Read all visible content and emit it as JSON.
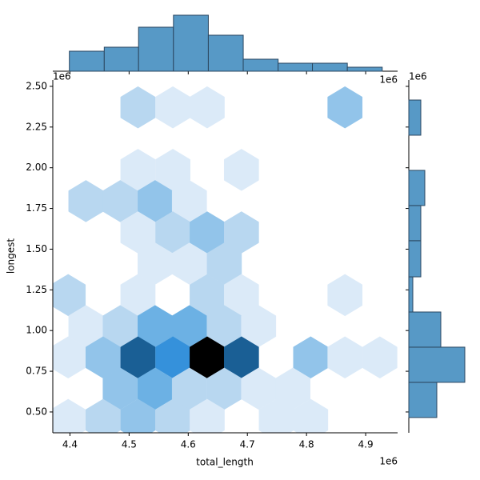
{
  "chart_data": {
    "type": "hexbin",
    "xlabel": "total_length",
    "ylabel": "longest",
    "x_offset": "1e6",
    "y_offset": "1e6",
    "top_offset": "1e6",
    "right_offset": "1e6",
    "xlim": [
      4.371,
      4.954
    ],
    "ylim": [
      0.372,
      2.539
    ],
    "xticks": [
      4.4,
      4.5,
      4.6,
      4.7,
      4.8,
      4.9
    ],
    "yticks": [
      {
        "value": 0.5,
        "label": "0.50"
      },
      0.75,
      {
        "value": 1.0,
        "label": "1.00"
      },
      1.25,
      {
        "value": 1.5,
        "label": "1.50"
      },
      1.75,
      {
        "value": 2.0,
        "label": "2.00"
      },
      2.25,
      {
        "value": 2.5,
        "label": "2.50"
      }
    ],
    "cmap": [
      "#ffffff",
      "#dbeaf8",
      "#b8d7f0",
      "#92c4ea",
      "#6cb1e4",
      "#50a1df",
      "#3591db",
      "#1a5f95",
      "#0d3049",
      "#000000"
    ],
    "hexbins": {
      "x": [
        4.515,
        4.574,
        4.632,
        4.865,
        4.515,
        4.574,
        4.69,
        4.427,
        4.485,
        4.544,
        4.602,
        4.515,
        4.574,
        4.632,
        4.69,
        4.544,
        4.602,
        4.661,
        4.397,
        4.515,
        4.632,
        4.69,
        4.865,
        4.427,
        4.485,
        4.544,
        4.602,
        4.661,
        4.719,
        4.397,
        4.456,
        4.515,
        4.574,
        4.632,
        4.69,
        4.807,
        4.865,
        4.924,
        4.485,
        4.544,
        4.602,
        4.661,
        4.719,
        4.777,
        4.397,
        4.456,
        4.515,
        4.574,
        4.632,
        4.749,
        4.807
      ],
      "y": [
        2.371,
        2.371,
        2.371,
        2.371,
        1.987,
        1.987,
        1.987,
        1.795,
        1.795,
        1.795,
        1.795,
        1.603,
        1.603,
        1.603,
        1.603,
        1.411,
        1.411,
        1.411,
        1.218,
        1.218,
        1.218,
        1.218,
        1.218,
        1.027,
        1.027,
        1.027,
        1.027,
        1.027,
        1.027,
        0.835,
        0.835,
        0.835,
        0.835,
        0.835,
        0.835,
        0.835,
        0.835,
        0.835,
        0.643,
        0.643,
        0.643,
        0.643,
        0.643,
        0.643,
        0.451,
        0.451,
        0.451,
        0.451,
        0.451,
        0.451,
        0.451
      ],
      "counts": [
        2,
        1,
        1,
        3,
        1,
        1,
        1,
        2,
        2,
        3,
        1,
        1,
        2,
        3,
        2,
        1,
        1,
        2,
        2,
        1,
        2,
        1,
        1,
        1,
        2,
        4,
        4,
        2,
        1,
        1,
        3,
        7,
        6,
        9,
        7,
        3,
        1,
        1,
        3,
        4,
        2,
        2,
        1,
        1,
        1,
        2,
        3,
        2,
        1,
        1,
        1
      ]
    },
    "hist_color": "#5799c6",
    "hist_edge": "#2b4760",
    "top_hist": {
      "bins": [
        4.399,
        4.458,
        4.516,
        4.575,
        4.634,
        4.693,
        4.752,
        4.81,
        4.869,
        4.928
      ],
      "counts": [
        5,
        6,
        11,
        14,
        9,
        3,
        2,
        2,
        1
      ],
      "ylim": [
        0,
        14.7
      ]
    },
    "right_hist": {
      "bins": [
        0.466,
        0.682,
        0.898,
        1.114,
        1.33,
        1.552,
        1.768,
        1.984,
        2.2,
        2.416
      ],
      "counts": [
        7,
        14,
        8,
        1,
        3,
        3,
        4,
        0,
        3
      ],
      "xlim": [
        0,
        14.7
      ]
    }
  }
}
